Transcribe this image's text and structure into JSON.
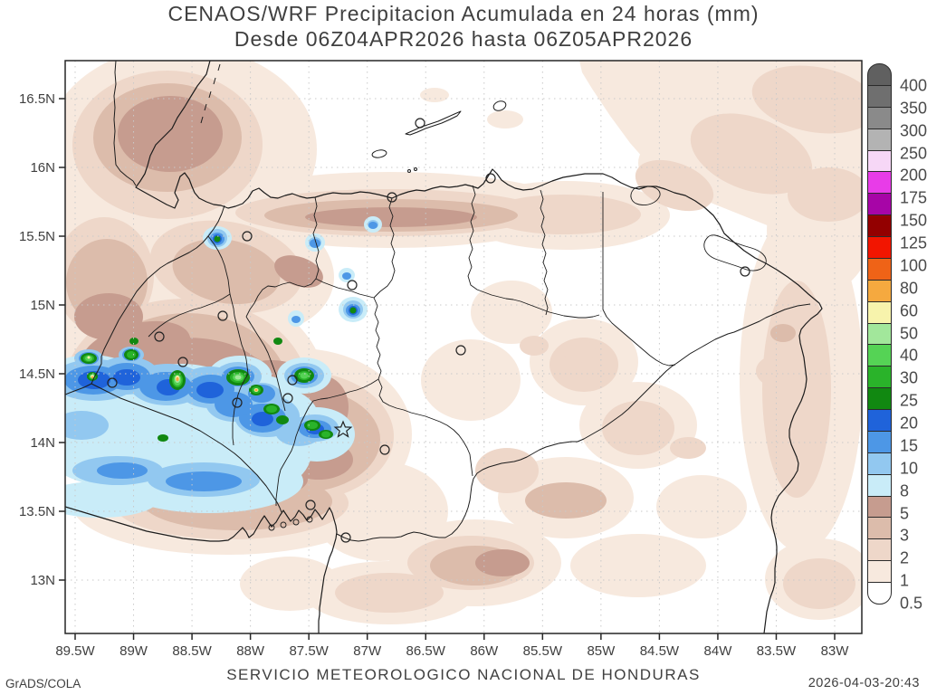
{
  "title": {
    "line1": "CENAOS/WRF Precipitacion Acumulada en 24 horas (mm)",
    "line2": "Desde 06Z04APR2026 hasta 06Z05APR2026"
  },
  "axes": {
    "lat_labels": [
      "16.5N",
      "16N",
      "15.5N",
      "15N",
      "14.5N",
      "14N",
      "13.5N",
      "13N"
    ],
    "lon_labels": [
      "89.5W",
      "89W",
      "88.5W",
      "88W",
      "87.5W",
      "87W",
      "86.5W",
      "86W",
      "85.5W",
      "85W",
      "84.5W",
      "84W",
      "83.5W",
      "83W"
    ]
  },
  "legend": {
    "labels": [
      "400",
      "350",
      "300",
      "250",
      "200",
      "175",
      "150",
      "125",
      "100",
      "80",
      "60",
      "50",
      "40",
      "30",
      "25",
      "20",
      "15",
      "10",
      "8",
      "5",
      "3",
      "2",
      "1",
      "0.5"
    ],
    "colors": [
      "#606060",
      "#6f6f6f",
      "#8a8a8a",
      "#b3b3b3",
      "#f6d7f6",
      "#e83ce8",
      "#a705a7",
      "#930000",
      "#f21500",
      "#ef6317",
      "#f5a93f",
      "#f7f3ac",
      "#a2e79b",
      "#55d355",
      "#2ab32a",
      "#118811",
      "#1f63da",
      "#4d97e6",
      "#92c8f0",
      "#c9ecf8",
      "#c69c8f",
      "#dcbcab",
      "#eed7c9",
      "#f7e9de",
      "#ffffff"
    ]
  },
  "map": {
    "frame_color": "#262626",
    "grid_color": "#c9c9c9",
    "sea_color": "#ffffff",
    "border_color": "#1c1c1c",
    "capital_marker": "star",
    "city_marker": "circle"
  },
  "footer": {
    "left": "GrADS/COLA",
    "center": "SERVICIO METEOROLOGICO NACIONAL DE HONDURAS",
    "right": "2026-04-03-20:43"
  }
}
